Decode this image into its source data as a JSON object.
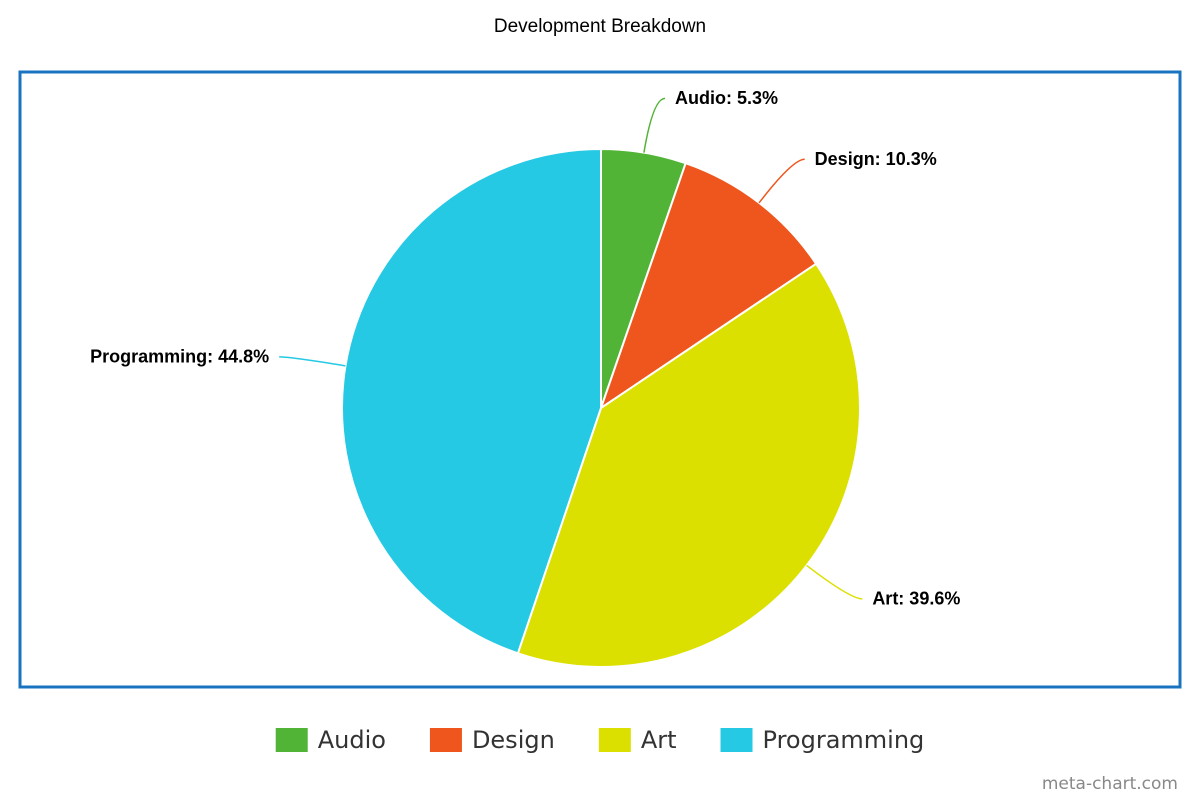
{
  "chart_data": {
    "type": "pie",
    "title": "Development Breakdown",
    "categories": [
      "Audio",
      "Design",
      "Art",
      "Programming"
    ],
    "values": [
      5.3,
      10.3,
      39.6,
      44.8
    ],
    "value_labels": [
      "Audio: 5.3%",
      "Design: 10.3%",
      "Art: 39.6%",
      "Programming: 44.8%"
    ],
    "colors": [
      "#52b436",
      "#ee561d",
      "#dce000",
      "#25c9e4"
    ],
    "watermark": "meta-chart.com"
  }
}
